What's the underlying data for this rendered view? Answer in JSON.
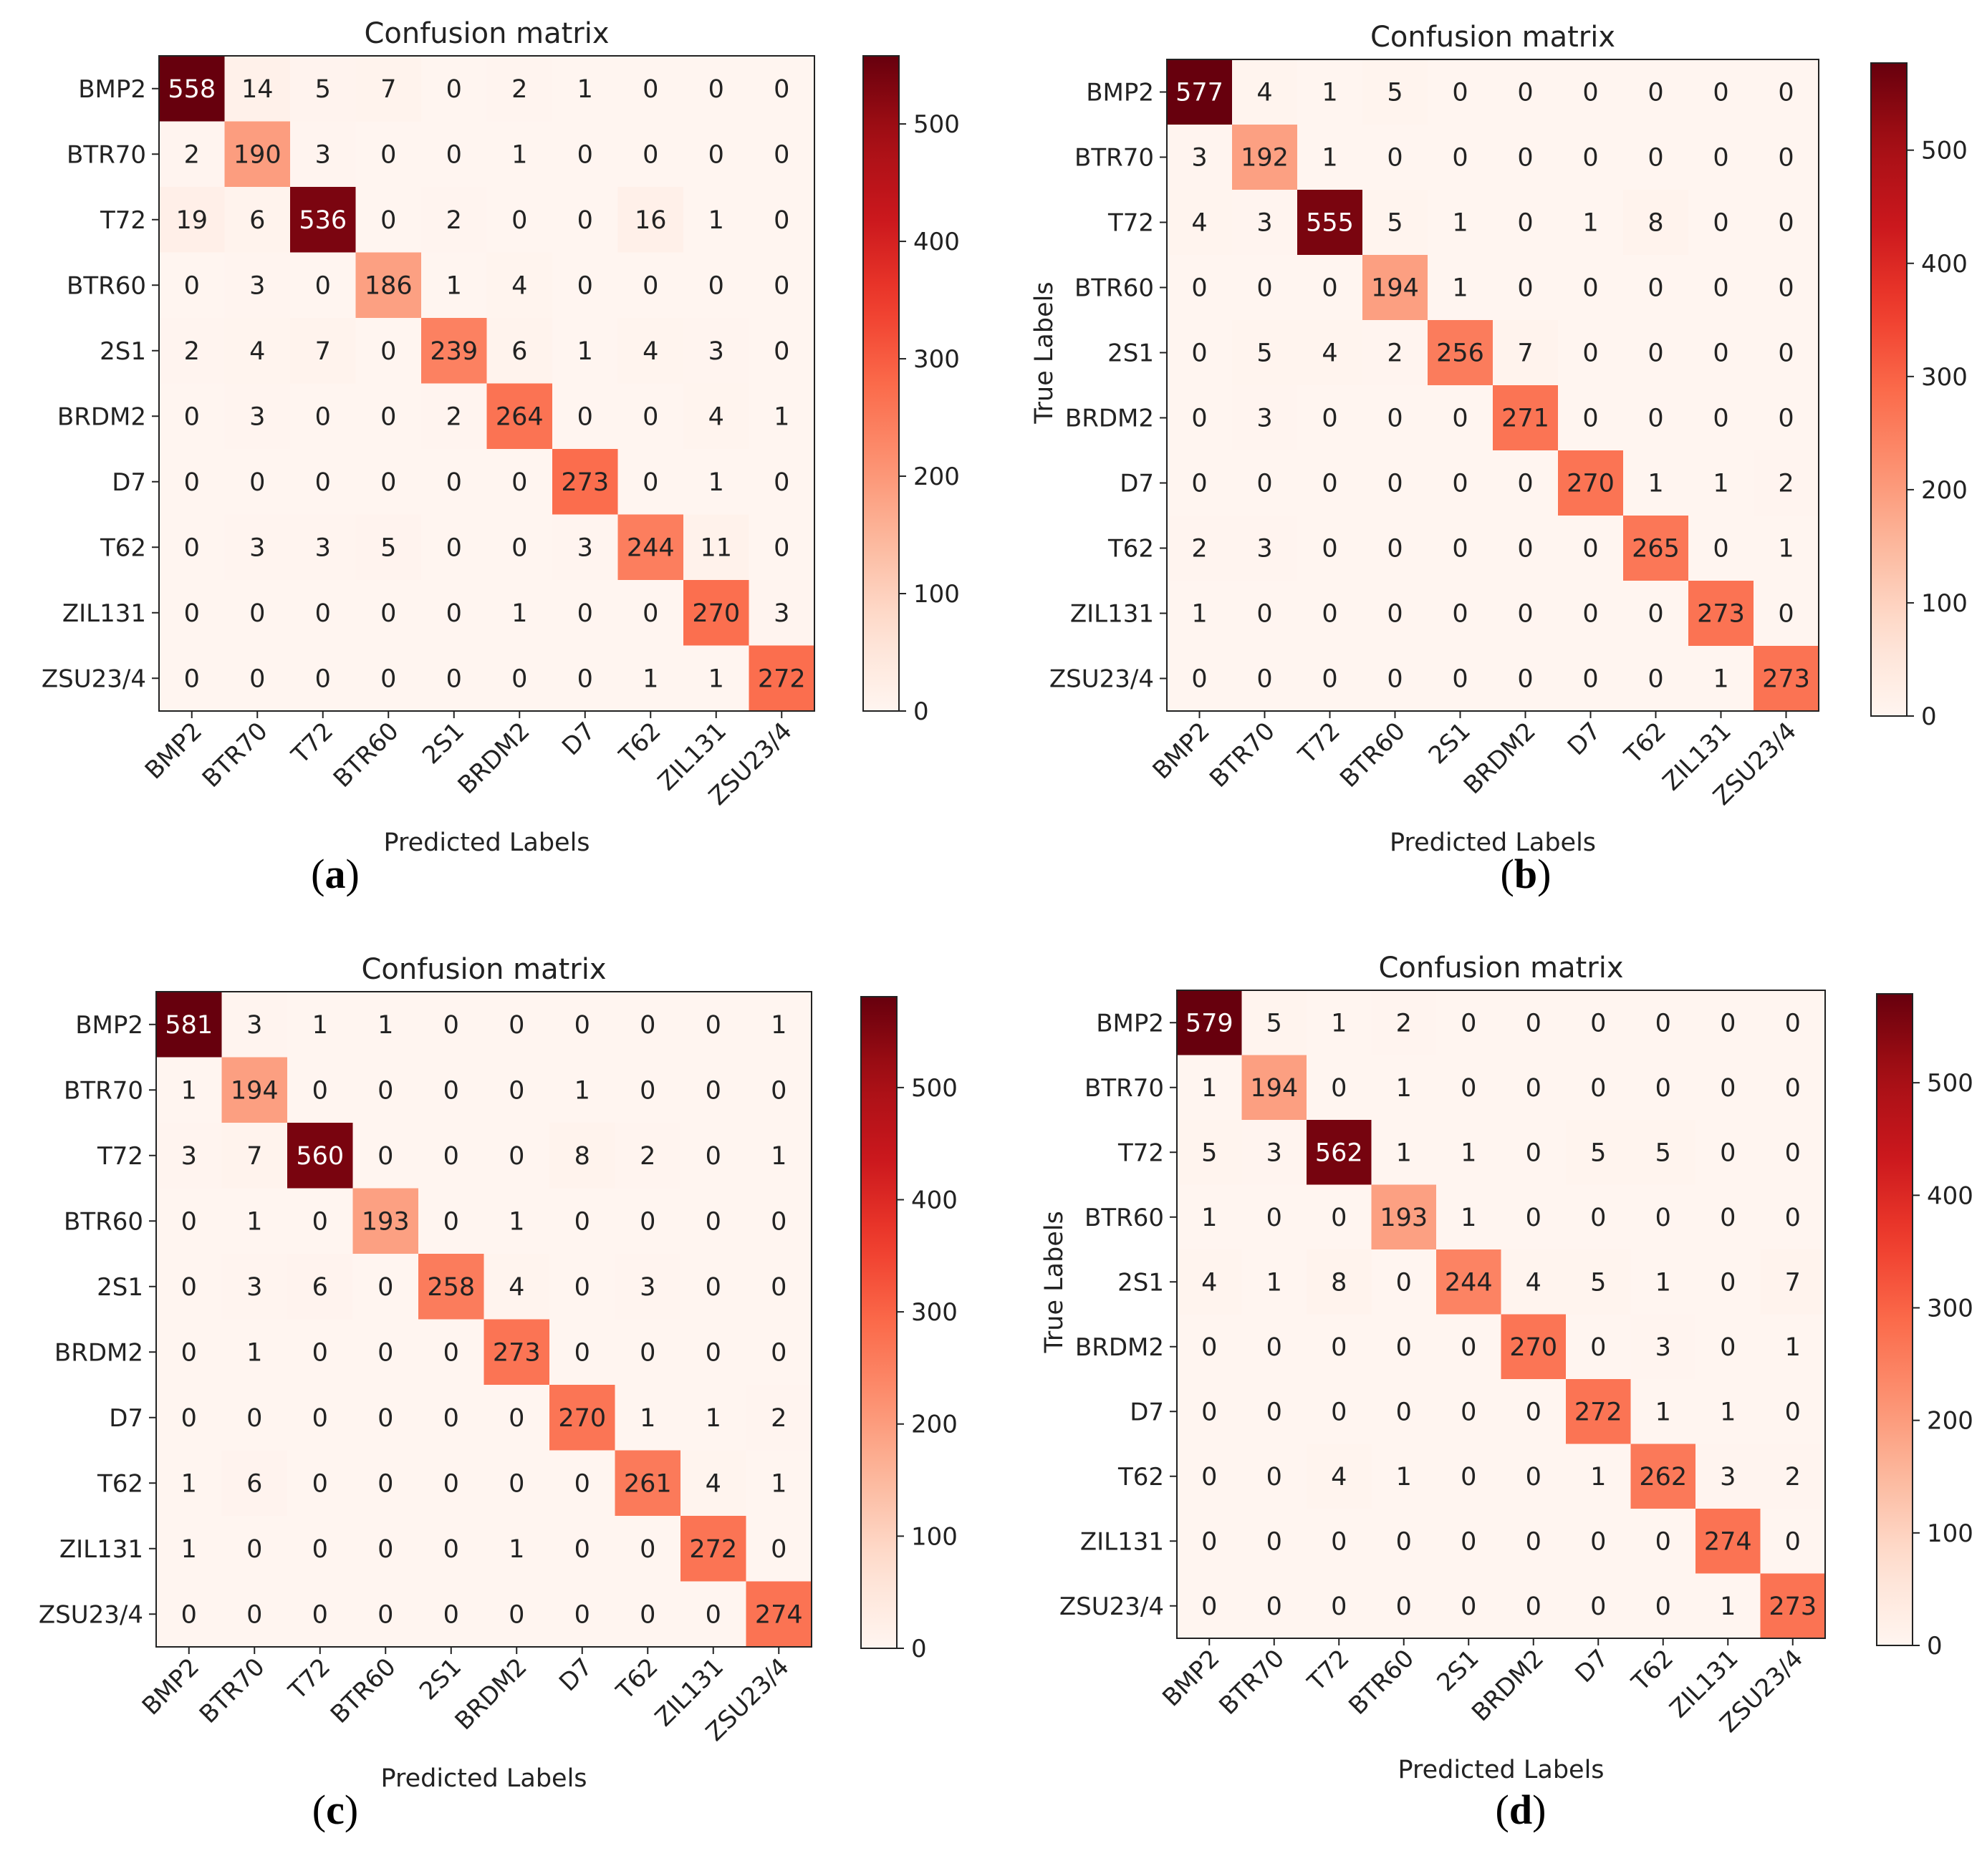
{
  "chart_data": [
    {
      "type": "heatmap",
      "panel": "a",
      "caption_label": "a",
      "title": "Confusion matrix",
      "xlabel": "Predicted Labels",
      "ylabel": "",
      "categories": [
        "BMP2",
        "BTR70",
        "T72",
        "BTR60",
        "2S1",
        "BRDM2",
        "D7",
        "T62",
        "ZIL131",
        "ZSU23/4"
      ],
      "matrix": [
        [
          558,
          14,
          5,
          7,
          0,
          2,
          1,
          0,
          0,
          0
        ],
        [
          2,
          190,
          3,
          0,
          0,
          1,
          0,
          0,
          0,
          0
        ],
        [
          19,
          6,
          536,
          0,
          2,
          0,
          0,
          16,
          1,
          0
        ],
        [
          0,
          3,
          0,
          186,
          1,
          4,
          0,
          0,
          0,
          0
        ],
        [
          2,
          4,
          7,
          0,
          239,
          6,
          1,
          4,
          3,
          0
        ],
        [
          0,
          3,
          0,
          0,
          2,
          264,
          0,
          0,
          4,
          1
        ],
        [
          0,
          0,
          0,
          0,
          0,
          0,
          273,
          0,
          1,
          0
        ],
        [
          0,
          3,
          3,
          5,
          0,
          0,
          3,
          244,
          11,
          0
        ],
        [
          0,
          0,
          0,
          0,
          0,
          1,
          0,
          0,
          270,
          3
        ],
        [
          0,
          0,
          0,
          0,
          0,
          0,
          0,
          1,
          1,
          272
        ]
      ],
      "colorbar_ticks": [
        0,
        100,
        200,
        300,
        400,
        500
      ],
      "vmax": 558,
      "colormap": "Reds"
    },
    {
      "type": "heatmap",
      "panel": "b",
      "caption_label": "b",
      "title": "Confusion matrix",
      "xlabel": "Predicted Labels",
      "ylabel": "True Labels",
      "categories": [
        "BMP2",
        "BTR70",
        "T72",
        "BTR60",
        "2S1",
        "BRDM2",
        "D7",
        "T62",
        "ZIL131",
        "ZSU23/4"
      ],
      "matrix": [
        [
          577,
          4,
          1,
          5,
          0,
          0,
          0,
          0,
          0,
          0
        ],
        [
          3,
          192,
          1,
          0,
          0,
          0,
          0,
          0,
          0,
          0
        ],
        [
          4,
          3,
          555,
          5,
          1,
          0,
          1,
          8,
          0,
          0
        ],
        [
          0,
          0,
          0,
          194,
          1,
          0,
          0,
          0,
          0,
          0
        ],
        [
          0,
          5,
          4,
          2,
          256,
          7,
          0,
          0,
          0,
          0
        ],
        [
          0,
          3,
          0,
          0,
          0,
          271,
          0,
          0,
          0,
          0
        ],
        [
          0,
          0,
          0,
          0,
          0,
          0,
          270,
          1,
          1,
          2
        ],
        [
          2,
          3,
          0,
          0,
          0,
          0,
          0,
          265,
          0,
          1
        ],
        [
          1,
          0,
          0,
          0,
          0,
          0,
          0,
          0,
          273,
          0
        ],
        [
          0,
          0,
          0,
          0,
          0,
          0,
          0,
          0,
          1,
          273
        ]
      ],
      "colorbar_ticks": [
        0,
        100,
        200,
        300,
        400,
        500
      ],
      "vmax": 577,
      "colormap": "Reds"
    },
    {
      "type": "heatmap",
      "panel": "c",
      "caption_label": "c",
      "title": "Confusion matrix",
      "xlabel": "Predicted Labels",
      "ylabel": "",
      "categories": [
        "BMP2",
        "BTR70",
        "T72",
        "BTR60",
        "2S1",
        "BRDM2",
        "D7",
        "T62",
        "ZIL131",
        "ZSU23/4"
      ],
      "matrix": [
        [
          581,
          3,
          1,
          1,
          0,
          0,
          0,
          0,
          0,
          1
        ],
        [
          1,
          194,
          0,
          0,
          0,
          0,
          1,
          0,
          0,
          0
        ],
        [
          3,
          7,
          560,
          0,
          0,
          0,
          8,
          2,
          0,
          1
        ],
        [
          0,
          1,
          0,
          193,
          0,
          1,
          0,
          0,
          0,
          0
        ],
        [
          0,
          3,
          6,
          0,
          258,
          4,
          0,
          3,
          0,
          0
        ],
        [
          0,
          1,
          0,
          0,
          0,
          273,
          0,
          0,
          0,
          0
        ],
        [
          0,
          0,
          0,
          0,
          0,
          0,
          270,
          1,
          1,
          2
        ],
        [
          1,
          6,
          0,
          0,
          0,
          0,
          0,
          261,
          4,
          1
        ],
        [
          1,
          0,
          0,
          0,
          0,
          1,
          0,
          0,
          272,
          0
        ],
        [
          0,
          0,
          0,
          0,
          0,
          0,
          0,
          0,
          0,
          274
        ]
      ],
      "colorbar_ticks": [
        0,
        100,
        200,
        300,
        400,
        500
      ],
      "vmax": 581,
      "colormap": "Reds"
    },
    {
      "type": "heatmap",
      "panel": "d",
      "caption_label": "d",
      "title": "Confusion matrix",
      "xlabel": "Predicted Labels",
      "ylabel": "True Labels",
      "categories": [
        "BMP2",
        "BTR70",
        "T72",
        "BTR60",
        "2S1",
        "BRDM2",
        "D7",
        "T62",
        "ZIL131",
        "ZSU23/4"
      ],
      "matrix": [
        [
          579,
          5,
          1,
          2,
          0,
          0,
          0,
          0,
          0,
          0
        ],
        [
          1,
          194,
          0,
          1,
          0,
          0,
          0,
          0,
          0,
          0
        ],
        [
          5,
          3,
          562,
          1,
          1,
          0,
          5,
          5,
          0,
          0
        ],
        [
          1,
          0,
          0,
          193,
          1,
          0,
          0,
          0,
          0,
          0
        ],
        [
          4,
          1,
          8,
          0,
          244,
          4,
          5,
          1,
          0,
          7
        ],
        [
          0,
          0,
          0,
          0,
          0,
          270,
          0,
          3,
          0,
          1
        ],
        [
          0,
          0,
          0,
          0,
          0,
          0,
          272,
          1,
          1,
          0
        ],
        [
          0,
          0,
          4,
          1,
          0,
          0,
          1,
          262,
          3,
          2
        ],
        [
          0,
          0,
          0,
          0,
          0,
          0,
          0,
          0,
          274,
          0
        ],
        [
          0,
          0,
          0,
          0,
          0,
          0,
          0,
          0,
          1,
          273
        ]
      ],
      "colorbar_ticks": [
        0,
        100,
        200,
        300,
        400,
        500
      ],
      "vmax": 579,
      "colormap": "Reds"
    }
  ]
}
